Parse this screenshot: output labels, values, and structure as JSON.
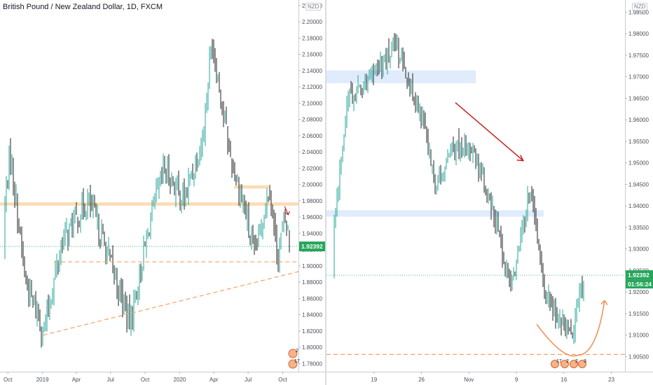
{
  "left_panel": {
    "title": "British Pound / New Zealand Dollar, 1D, FXCM",
    "currency_label": "NZD",
    "price_tag": "1.92392",
    "price_tag_color": "#26a65b",
    "marker_badges": [
      "17",
      "2"
    ]
  },
  "right_panel": {
    "currency_label": "NZD",
    "price_tag": "1.92392",
    "countdown_tag": "01:56:24",
    "price_tag_color": "#26a65b",
    "marker_badges": [
      "17",
      "2",
      "2",
      "3"
    ]
  },
  "colors": {
    "candle_up": "#26a69a",
    "candle_down": "#222222",
    "zone_orange": "#fbd5a8",
    "zone_blue": "#dbe7fb",
    "trendline_orange": "#f5a06a",
    "arrow_red": "#cc1f1f",
    "curve_orange": "#f38a4b"
  },
  "chart_data": [
    {
      "type": "candlestick",
      "symbol": "GBPNZD",
      "timeframe": "1D",
      "y_ticks": [
        "1.78000",
        "1.80000",
        "1.82000",
        "1.84000",
        "1.86000",
        "1.88000",
        "1.90000",
        "1.92000",
        "1.94000",
        "1.96000",
        "1.98000",
        "2.00000",
        "2.02000",
        "2.04000",
        "2.06000",
        "2.08000",
        "2.10000",
        "2.12000",
        "2.14000",
        "2.16000",
        "2.18000",
        "2.20000",
        "2.22000"
      ],
      "ylim": [
        1.77,
        2.225
      ],
      "x_ticks": [
        "Oct",
        "2019",
        "Apr",
        "Jul",
        "Oct",
        "2020",
        "Apr",
        "Jul",
        "Oct"
      ],
      "last_price": 1.92392,
      "key_points": [
        {
          "date": "2018-09-20",
          "close": 1.97
        },
        {
          "date": "2018-10-05",
          "close": 2.04
        },
        {
          "date": "2018-11-15",
          "close": 1.88
        },
        {
          "date": "2019-01-03",
          "close": 1.82
        },
        {
          "date": "2019-02-20",
          "close": 1.93
        },
        {
          "date": "2019-05-01",
          "close": 1.98
        },
        {
          "date": "2019-06-10",
          "close": 1.93
        },
        {
          "date": "2019-08-20",
          "close": 1.83
        },
        {
          "date": "2019-10-15",
          "close": 1.96
        },
        {
          "date": "2019-11-20",
          "close": 2.02
        },
        {
          "date": "2020-01-10",
          "close": 1.98
        },
        {
          "date": "2020-03-01",
          "close": 2.06
        },
        {
          "date": "2020-03-25",
          "close": 2.18
        },
        {
          "date": "2020-05-10",
          "close": 2.04
        },
        {
          "date": "2020-06-20",
          "close": 1.97
        },
        {
          "date": "2020-07-15",
          "close": 1.91
        },
        {
          "date": "2020-08-25",
          "close": 2.0
        },
        {
          "date": "2020-09-15",
          "close": 1.91
        },
        {
          "date": "2020-10-05",
          "close": 1.96
        },
        {
          "date": "2020-10-20",
          "close": 1.924
        }
      ],
      "annotations": {
        "resistance_zone_1": [
          1.974,
          1.978
        ],
        "resistance_zone_2": [
          1.995,
          1.999
        ],
        "support_dashed_level": 1.905,
        "rising_trendline": {
          "from": {
            "date": "2019-01-03",
            "price": 1.815
          },
          "to": {
            "date": "2020-10-28",
            "price": 1.893
          }
        }
      }
    },
    {
      "type": "candlestick",
      "symbol": "GBPNZD",
      "timeframe": "1H",
      "y_ticks": [
        "1.90500",
        "1.91000",
        "1.91500",
        "1.92000",
        "1.92500",
        "1.93000",
        "1.93500",
        "1.94000",
        "1.94500",
        "1.95000",
        "1.95500",
        "1.96000",
        "1.96500",
        "1.97000",
        "1.97500",
        "1.98000",
        "1.98500"
      ],
      "ylim": [
        1.9015,
        1.9875
      ],
      "x_ticks": [
        "19",
        "26",
        "Nov",
        "9",
        "16",
        "23"
      ],
      "last_price": 1.92392,
      "key_points": [
        {
          "date": "2020-10-13",
          "close": 1.935
        },
        {
          "date": "2020-10-15",
          "close": 1.965
        },
        {
          "date": "2020-10-20",
          "close": 1.972
        },
        {
          "date": "2020-10-22",
          "close": 1.978
        },
        {
          "date": "2020-10-26",
          "close": 1.96
        },
        {
          "date": "2020-10-28",
          "close": 1.945
        },
        {
          "date": "2020-10-30",
          "close": 1.952
        },
        {
          "date": "2020-11-02",
          "close": 1.955
        },
        {
          "date": "2020-11-04",
          "close": 1.946
        },
        {
          "date": "2020-11-06",
          "close": 1.935
        },
        {
          "date": "2020-11-08",
          "close": 1.92
        },
        {
          "date": "2020-11-11",
          "close": 1.945
        },
        {
          "date": "2020-11-13",
          "close": 1.92
        },
        {
          "date": "2020-11-15",
          "close": 1.914
        },
        {
          "date": "2020-11-17",
          "close": 1.91
        },
        {
          "date": "2020-11-19",
          "close": 1.924
        }
      ],
      "annotations": {
        "supply_zone": [
          1.9685,
          1.9715
        ],
        "demand_zone": [
          1.9375,
          1.939
        ],
        "support_dashed_level": 1.9055,
        "downtrend_arrow": {
          "from": {
            "date": "2020-10-31",
            "price": 1.964
          },
          "to": {
            "date": "2020-11-10",
            "price": 1.9505
          }
        },
        "projected_rounding_bottom": {
          "start": {
            "date": "2020-11-12",
            "price": 1.9125
          },
          "bottom": {
            "date": "2020-11-17",
            "price": 1.905
          },
          "end": {
            "date": "2020-11-22",
            "price": 1.918
          }
        }
      }
    }
  ]
}
